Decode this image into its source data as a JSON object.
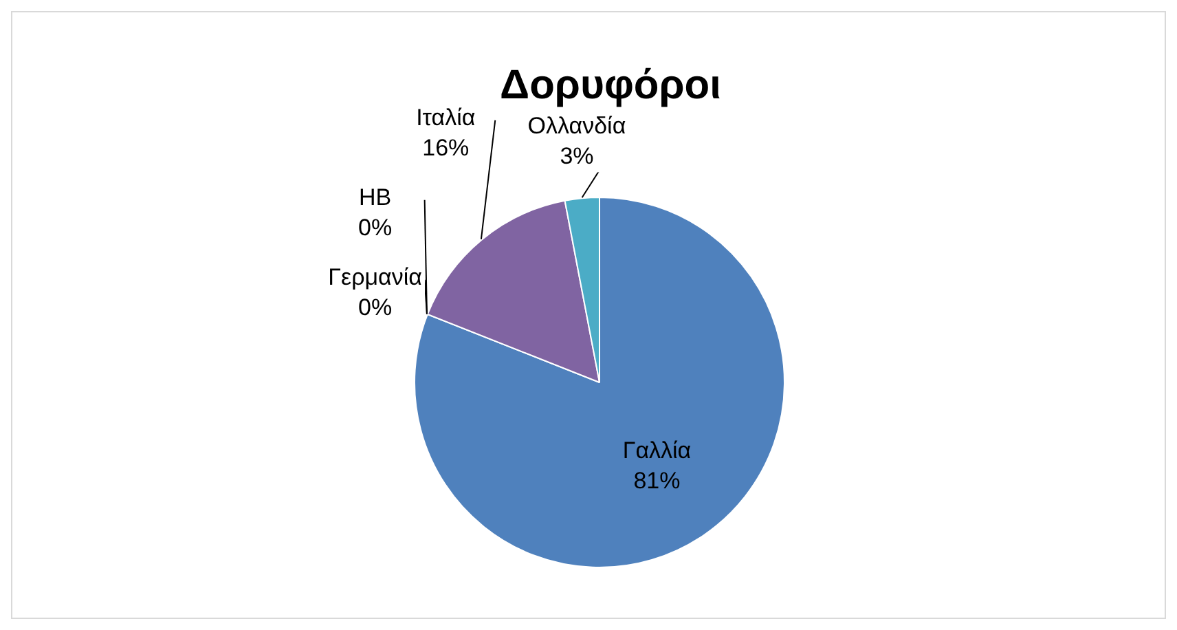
{
  "chart_data": {
    "type": "pie",
    "title": "Δορυφόροι",
    "categories": [
      "Γαλλία",
      "Γερμανία",
      "ΗΒ",
      "Ιταλία",
      "Ολλανδία"
    ],
    "values": [
      81,
      0,
      0,
      16,
      3
    ],
    "colors": [
      "#4f81bd",
      "#c0504d",
      "#9bbb59",
      "#8064a2",
      "#4bacc6"
    ],
    "value_labels": [
      "81%",
      "0%",
      "0%",
      "16%",
      "3%"
    ],
    "legend": false
  }
}
